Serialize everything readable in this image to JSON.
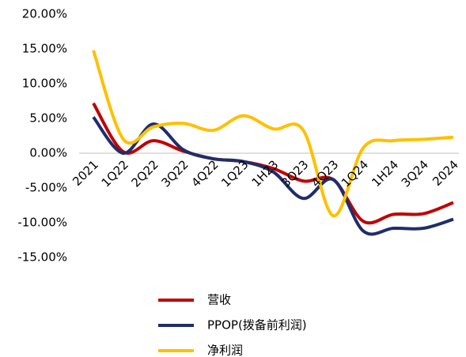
{
  "chart_data": {
    "type": "line",
    "categories": [
      "2021",
      "1Q22",
      "2Q22",
      "3Q22",
      "4Q22",
      "1Q23",
      "1H23",
      "3Q23",
      "4Q23",
      "1Q24",
      "1H24",
      "3Q24",
      "2024"
    ],
    "series": [
      {
        "name": "营收",
        "color": "#c00000",
        "values": [
          7.2,
          0.2,
          1.8,
          0.3,
          -0.8,
          -1.2,
          -2.2,
          -4.0,
          -3.8,
          -9.8,
          -8.8,
          -8.7,
          -7.1
        ]
      },
      {
        "name": "PPOP(拨备前利润)",
        "color": "#1f2d6b",
        "values": [
          5.2,
          0.0,
          4.2,
          0.5,
          -0.8,
          -1.2,
          -2.7,
          -6.5,
          -3.8,
          -11.2,
          -10.8,
          -10.8,
          -9.5
        ]
      },
      {
        "name": "净利润",
        "color": "#ffc000",
        "values": [
          14.8,
          2.0,
          3.8,
          4.3,
          3.3,
          5.4,
          3.5,
          3.3,
          -9.0,
          0.8,
          1.8,
          2.0,
          2.3
        ]
      }
    ],
    "ylim": [
      -15,
      20
    ],
    "yticks": [
      {
        "value": 20,
        "label": "20.00%"
      },
      {
        "value": 15,
        "label": "15.00%"
      },
      {
        "value": 10,
        "label": "10.00%"
      },
      {
        "value": 5,
        "label": "5.00%"
      },
      {
        "value": 0,
        "label": "0.00%"
      },
      {
        "value": -5,
        "label": "-5.00%"
      },
      {
        "value": -10,
        "label": "-10.00%"
      },
      {
        "value": -15,
        "label": "-15.00%"
      }
    ],
    "grid": false
  }
}
